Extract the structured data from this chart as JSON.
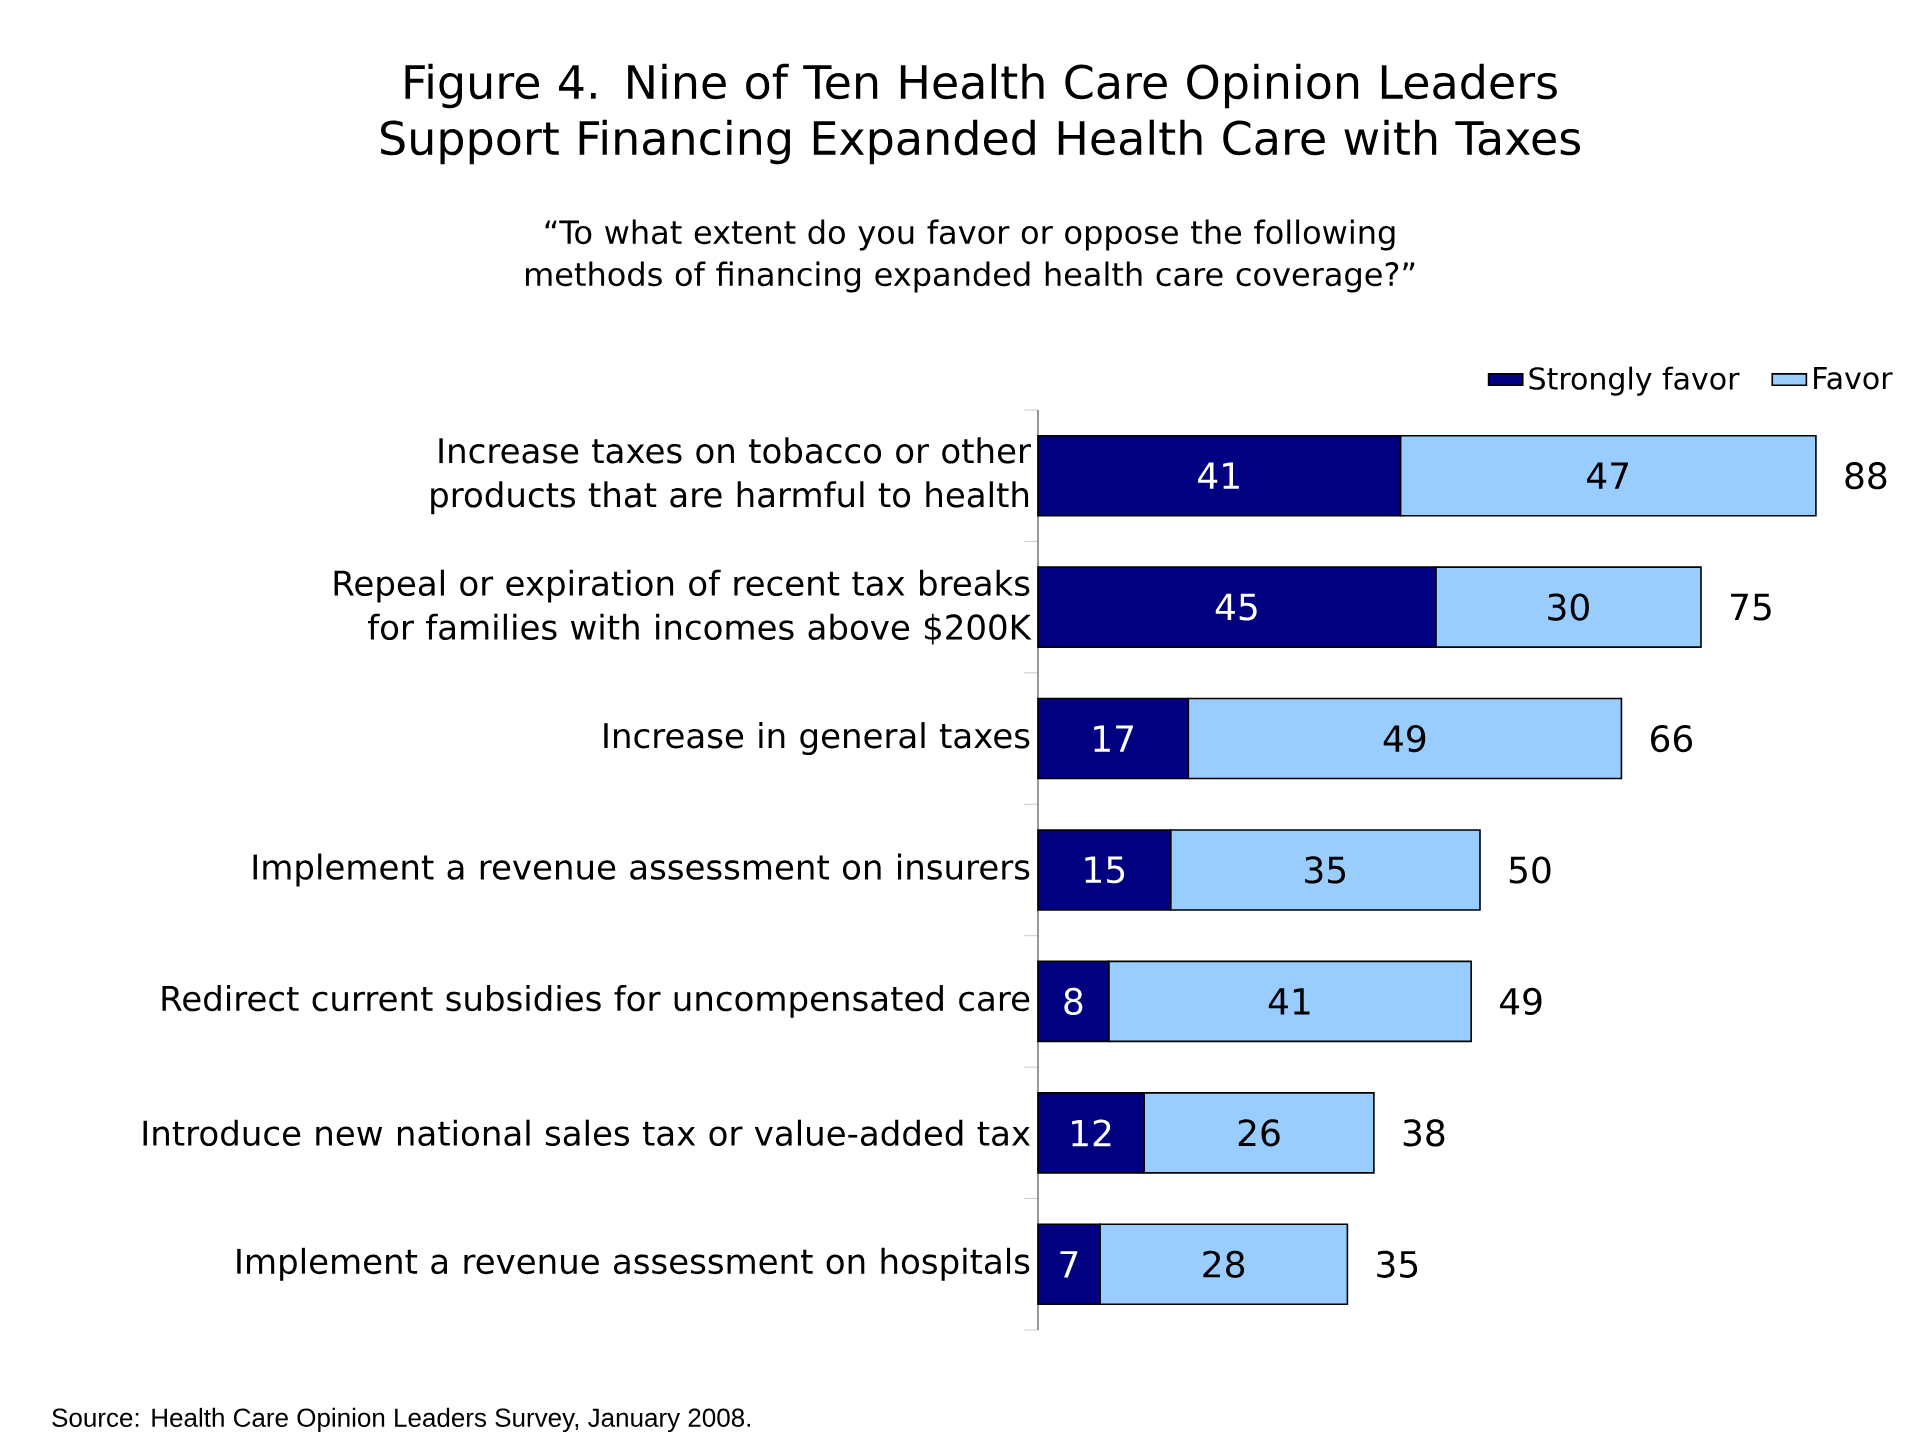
{
  "chart_data": {
    "type": "bar",
    "orientation": "horizontal",
    "stacked": true,
    "title": "Figure 4. Nine of Ten Health Care Opinion Leaders Support Financing Expanded Health Care with Taxes",
    "subtitle": "“To what extent do you favor or oppose the following methods of financing expanded health care coverage?”",
    "categories": [
      "Increase taxes on tobacco or other products that are harmful to health",
      "Repeal or expiration of recent tax breaks for families with incomes above $200K",
      "Increase in general taxes",
      "Implement a revenue assessment on insurers",
      "Redirect current subsidies for uncompensated care",
      "Introduce new national sales tax or value-added tax",
      "Implement a revenue assessment on hospitals"
    ],
    "series": [
      {
        "name": "Strongly favor",
        "color": "#000080",
        "values": [
          41,
          45,
          17,
          15,
          8,
          12,
          7
        ]
      },
      {
        "name": "Favor",
        "color": "#99ccff",
        "values": [
          47,
          30,
          49,
          35,
          41,
          26,
          28
        ]
      }
    ],
    "data_labels": true,
    "totals": [
      "88",
      "75",
      "66",
      "50",
      "49",
      "38",
      "35"
    ],
    "legend": "top right",
    "tick_labels": "y",
    "annotations": [
      "Source: Health Care Opinion Leaders Survey, January 2008."
    ]
  }
}
